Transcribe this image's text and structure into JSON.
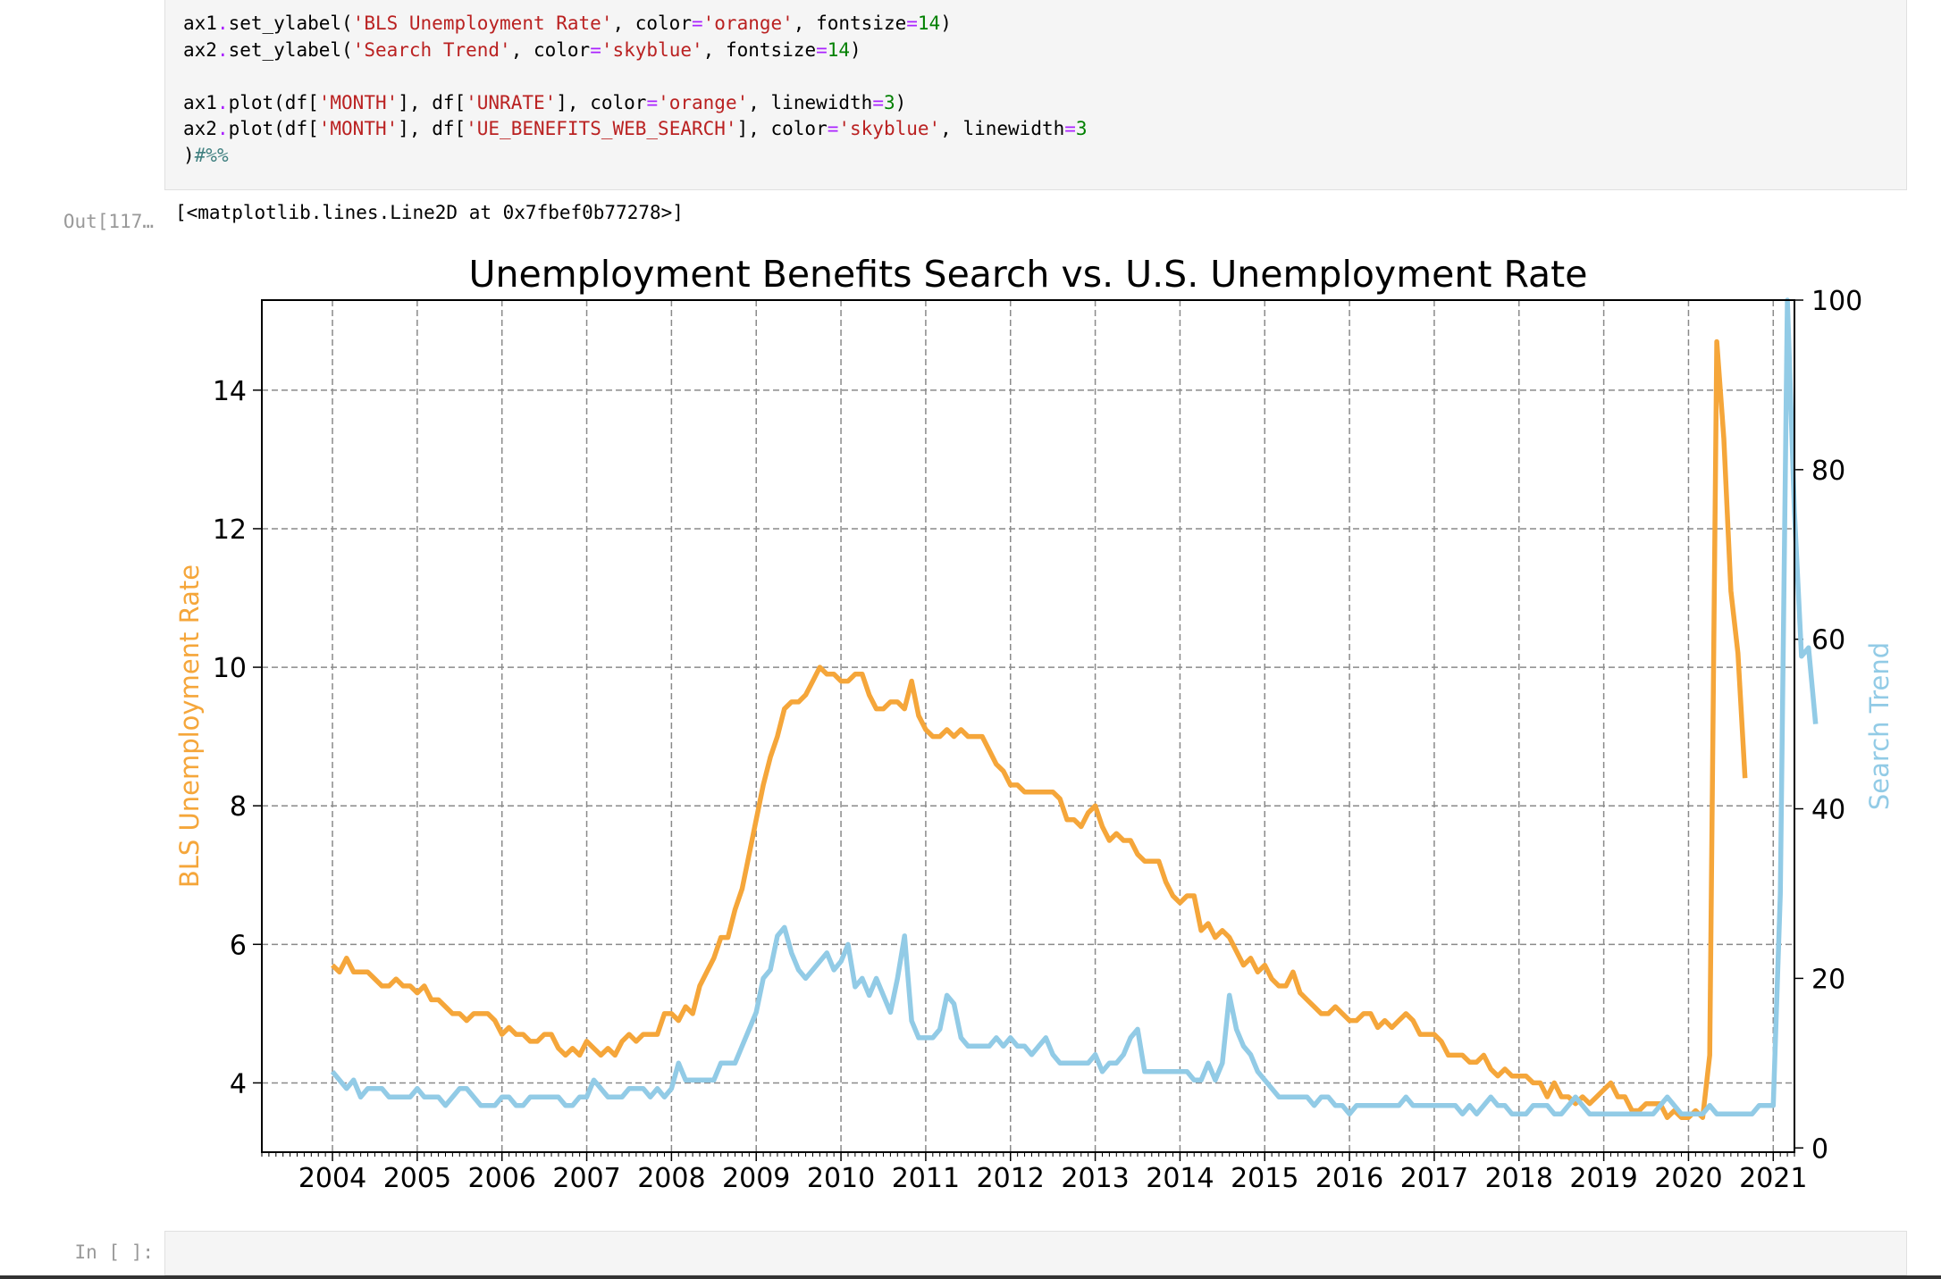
{
  "code": {
    "lines": [
      [
        [
          "",
          "ax1"
        ],
        [
          "op",
          "."
        ],
        [
          "",
          "set_ylabel("
        ],
        [
          "str",
          "'BLS Unemployment Rate'"
        ],
        [
          "",
          ", color"
        ],
        [
          "op",
          "="
        ],
        [
          "str",
          "'orange'"
        ],
        [
          "",
          ", fontsize"
        ],
        [
          "op",
          "="
        ],
        [
          "num",
          "14"
        ],
        [
          "",
          ")"
        ]
      ],
      [
        [
          "",
          "ax2"
        ],
        [
          "op",
          "."
        ],
        [
          "",
          "set_ylabel("
        ],
        [
          "str",
          "'Search Trend'"
        ],
        [
          "",
          ", color"
        ],
        [
          "op",
          "="
        ],
        [
          "str",
          "'skyblue'"
        ],
        [
          "",
          ", fontsize"
        ],
        [
          "op",
          "="
        ],
        [
          "num",
          "14"
        ],
        [
          "",
          ")"
        ]
      ],
      [],
      [
        [
          "",
          "ax1"
        ],
        [
          "op",
          "."
        ],
        [
          "",
          "plot(df["
        ],
        [
          "str",
          "'MONTH'"
        ],
        [
          "",
          "], df["
        ],
        [
          "str",
          "'UNRATE'"
        ],
        [
          "",
          "], color"
        ],
        [
          "op",
          "="
        ],
        [
          "str",
          "'orange'"
        ],
        [
          "",
          ", linewidth"
        ],
        [
          "op",
          "="
        ],
        [
          "num",
          "3"
        ],
        [
          "",
          ")"
        ]
      ],
      [
        [
          "",
          "ax2"
        ],
        [
          "op",
          "."
        ],
        [
          "",
          "plot(df["
        ],
        [
          "str",
          "'MONTH'"
        ],
        [
          "",
          "], df["
        ],
        [
          "str",
          "'UE_BENEFITS_WEB_SEARCH'"
        ],
        [
          "",
          "], color"
        ],
        [
          "op",
          "="
        ],
        [
          "str",
          "'skyblue'"
        ],
        [
          "",
          ", linewidth"
        ],
        [
          "op",
          "="
        ],
        [
          "num",
          "3"
        ]
      ],
      [
        [
          "",
          ")"
        ],
        [
          "cmt",
          "#%%"
        ]
      ]
    ]
  },
  "output": {
    "prompt": "Out[117…",
    "text": "[<matplotlib.lines.Line2D at 0x7fbef0b77278>]"
  },
  "next_cell": {
    "prompt": "In [ ]:"
  },
  "chart_data": {
    "type": "line",
    "title": "Unemployment Benefits Search vs. U.S. Unemployment Rate",
    "xlabel": "",
    "ylabel_left": "BLS Unemployment Rate",
    "ylabel_right": "Search Trend",
    "xlim": [
      "2003-03",
      "2021-04"
    ],
    "ylim_left": [
      3.0,
      15.3
    ],
    "ylim_right": [
      -0.5,
      100
    ],
    "x_ticks": [
      "2004",
      "2005",
      "2006",
      "2007",
      "2008",
      "2009",
      "2010",
      "2011",
      "2012",
      "2013",
      "2014",
      "2015",
      "2016",
      "2017",
      "2018",
      "2019",
      "2020",
      "2021"
    ],
    "y_ticks_left": [
      4,
      6,
      8,
      10,
      12,
      14
    ],
    "y_ticks_right": [
      0,
      20,
      40,
      60,
      80,
      100
    ],
    "grid": true,
    "colors": {
      "left": "#f5a63a",
      "right": "#92cbe6"
    },
    "start": "2004-01",
    "series": [
      {
        "name": "UNRATE",
        "axis": "left",
        "values": [
          5.7,
          5.6,
          5.8,
          5.6,
          5.6,
          5.6,
          5.5,
          5.4,
          5.4,
          5.5,
          5.4,
          5.4,
          5.3,
          5.4,
          5.2,
          5.2,
          5.1,
          5.0,
          5.0,
          4.9,
          5.0,
          5.0,
          5.0,
          4.9,
          4.7,
          4.8,
          4.7,
          4.7,
          4.6,
          4.6,
          4.7,
          4.7,
          4.5,
          4.4,
          4.5,
          4.4,
          4.6,
          4.5,
          4.4,
          4.5,
          4.4,
          4.6,
          4.7,
          4.6,
          4.7,
          4.7,
          4.7,
          5.0,
          5.0,
          4.9,
          5.1,
          5.0,
          5.4,
          5.6,
          5.8,
          6.1,
          6.1,
          6.5,
          6.8,
          7.3,
          7.8,
          8.3,
          8.7,
          9.0,
          9.4,
          9.5,
          9.5,
          9.6,
          9.8,
          10.0,
          9.9,
          9.9,
          9.8,
          9.8,
          9.9,
          9.9,
          9.6,
          9.4,
          9.4,
          9.5,
          9.5,
          9.4,
          9.8,
          9.3,
          9.1,
          9.0,
          9.0,
          9.1,
          9.0,
          9.1,
          9.0,
          9.0,
          9.0,
          8.8,
          8.6,
          8.5,
          8.3,
          8.3,
          8.2,
          8.2,
          8.2,
          8.2,
          8.2,
          8.1,
          7.8,
          7.8,
          7.7,
          7.9,
          8.0,
          7.7,
          7.5,
          7.6,
          7.5,
          7.5,
          7.3,
          7.2,
          7.2,
          7.2,
          6.9,
          6.7,
          6.6,
          6.7,
          6.7,
          6.2,
          6.3,
          6.1,
          6.2,
          6.1,
          5.9,
          5.7,
          5.8,
          5.6,
          5.7,
          5.5,
          5.4,
          5.4,
          5.6,
          5.3,
          5.2,
          5.1,
          5.0,
          5.0,
          5.1,
          5.0,
          4.9,
          4.9,
          5.0,
          5.0,
          4.8,
          4.9,
          4.8,
          4.9,
          5.0,
          4.9,
          4.7,
          4.7,
          4.7,
          4.6,
          4.4,
          4.4,
          4.4,
          4.3,
          4.3,
          4.4,
          4.2,
          4.1,
          4.2,
          4.1,
          4.1,
          4.1,
          4.0,
          4.0,
          3.8,
          4.0,
          3.8,
          3.8,
          3.7,
          3.8,
          3.7,
          3.8,
          3.9,
          4.0,
          3.8,
          3.8,
          3.6,
          3.6,
          3.7,
          3.7,
          3.7,
          3.5,
          3.6,
          3.5,
          3.5,
          3.6,
          3.5,
          4.4,
          14.7,
          13.3,
          11.1,
          10.2,
          8.4
        ]
      },
      {
        "name": "UE_BENEFITS_WEB_SEARCH",
        "axis": "right",
        "values": [
          9,
          8,
          7,
          8,
          6,
          7,
          7,
          7,
          6,
          6,
          6,
          6,
          7,
          6,
          6,
          6,
          5,
          6,
          7,
          7,
          6,
          5,
          5,
          5,
          6,
          6,
          5,
          5,
          6,
          6,
          6,
          6,
          6,
          5,
          5,
          6,
          6,
          8,
          7,
          6,
          6,
          6,
          7,
          7,
          7,
          6,
          7,
          6,
          7,
          10,
          8,
          8,
          8,
          8,
          8,
          10,
          10,
          10,
          12,
          14,
          16,
          20,
          21,
          25,
          26,
          23,
          21,
          20,
          21,
          22,
          23,
          21,
          22,
          24,
          19,
          20,
          18,
          20,
          18,
          16,
          20,
          25,
          15,
          13,
          13,
          13,
          14,
          18,
          17,
          13,
          12,
          12,
          12,
          12,
          13,
          12,
          13,
          12,
          12,
          11,
          12,
          13,
          11,
          10,
          10,
          10,
          10,
          10,
          11,
          9,
          10,
          10,
          11,
          13,
          14,
          9,
          9,
          9,
          9,
          9,
          9,
          9,
          8,
          8,
          10,
          8,
          10,
          18,
          14,
          12,
          11,
          9,
          8,
          7,
          6,
          6,
          6,
          6,
          6,
          5,
          6,
          6,
          5,
          5,
          4,
          5,
          5,
          5,
          5,
          5,
          5,
          5,
          6,
          5,
          5,
          5,
          5,
          5,
          5,
          5,
          4,
          5,
          4,
          5,
          6,
          5,
          5,
          4,
          4,
          4,
          5,
          5,
          5,
          4,
          4,
          5,
          6,
          5,
          4,
          4,
          4,
          4,
          4,
          4,
          4,
          4,
          4,
          4,
          5,
          6,
          5,
          4,
          4,
          4,
          4,
          5,
          4,
          4,
          4,
          4,
          4,
          4,
          5,
          5,
          5,
          30,
          100,
          75,
          58,
          59,
          50
        ]
      }
    ]
  }
}
